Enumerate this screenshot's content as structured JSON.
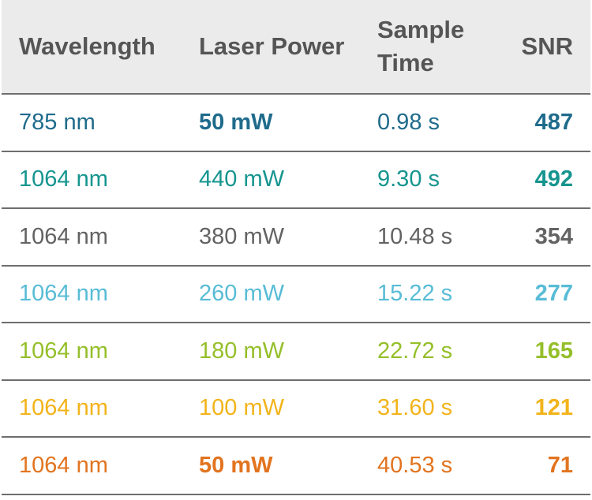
{
  "headers": {
    "wavelength": "Wavelength",
    "laser_power": "Laser Power",
    "sample_time_line1": "Sample",
    "sample_time_line2": "Time",
    "snr": "SNR"
  },
  "rows": [
    {
      "wavelength": "785 nm",
      "laser_power": "50 mW",
      "sample_time": "0.98 s",
      "snr": "487",
      "color": "#1f6b8c",
      "power_bold": true
    },
    {
      "wavelength": "1064 nm",
      "laser_power": "440 mW",
      "sample_time": "9.30 s",
      "snr": "492",
      "color": "#16958f",
      "power_bold": false
    },
    {
      "wavelength": "1064 nm",
      "laser_power": "380 mW",
      "sample_time": "10.48 s",
      "snr": "354",
      "color": "#636363",
      "power_bold": false
    },
    {
      "wavelength": "1064 nm",
      "laser_power": "260 mW",
      "sample_time": "15.22 s",
      "snr": "277",
      "color": "#58bcd6",
      "power_bold": false
    },
    {
      "wavelength": "1064 nm",
      "laser_power": "180 mW",
      "sample_time": "22.72 s",
      "snr": "165",
      "color": "#95bf2a",
      "power_bold": false
    },
    {
      "wavelength": "1064 nm",
      "laser_power": "100 mW",
      "sample_time": "31.60 s",
      "snr": "121",
      "color": "#f2b41b",
      "power_bold": false
    },
    {
      "wavelength": "1064 nm",
      "laser_power": "50 mW",
      "sample_time": "40.53 s",
      "snr": "71",
      "color": "#e2741f",
      "power_bold": true
    }
  ]
}
